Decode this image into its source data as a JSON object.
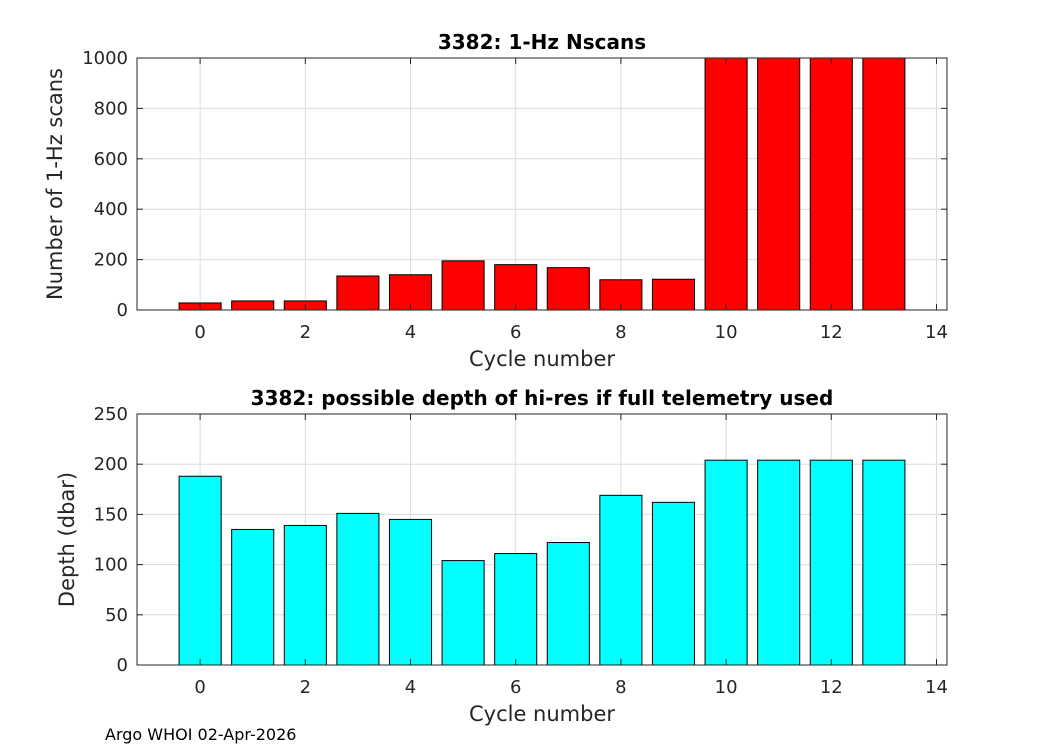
{
  "chart_data": [
    {
      "type": "bar",
      "title": "3382: 1-Hz Nscans",
      "xlabel": "Cycle number",
      "ylabel": "Number of 1-Hz scans",
      "x": [
        0,
        1,
        2,
        3,
        4,
        5,
        6,
        7,
        8,
        9,
        10,
        11,
        12,
        13
      ],
      "values": [
        28,
        36,
        36,
        135,
        140,
        195,
        180,
        168,
        120,
        122,
        1000,
        1000,
        1000,
        1000
      ],
      "xlim": [
        -1.2,
        14.2
      ],
      "ylim": [
        0,
        1000
      ],
      "xticks": [
        0,
        2,
        4,
        6,
        8,
        10,
        12,
        14
      ],
      "yticks": [
        0,
        200,
        400,
        600,
        800,
        1000
      ],
      "grid": true,
      "bar_color": "#ff0000"
    },
    {
      "type": "bar",
      "title": "3382: possible depth of hi-res if full telemetry used",
      "xlabel": "Cycle number",
      "ylabel": "Depth (dbar)",
      "x": [
        0,
        1,
        2,
        3,
        4,
        5,
        6,
        7,
        8,
        9,
        10,
        11,
        12,
        13
      ],
      "values": [
        188,
        135,
        139,
        151,
        145,
        104,
        111,
        122,
        169,
        162,
        204,
        204,
        204,
        204
      ],
      "xlim": [
        -1.2,
        14.2
      ],
      "ylim": [
        0,
        250
      ],
      "xticks": [
        0,
        2,
        4,
        6,
        8,
        10,
        12,
        14
      ],
      "yticks": [
        0,
        50,
        100,
        150,
        200,
        250
      ],
      "grid": true,
      "bar_color": "#00ffff"
    }
  ],
  "footer": {
    "note": "Argo WHOI 02-Apr-2026"
  }
}
